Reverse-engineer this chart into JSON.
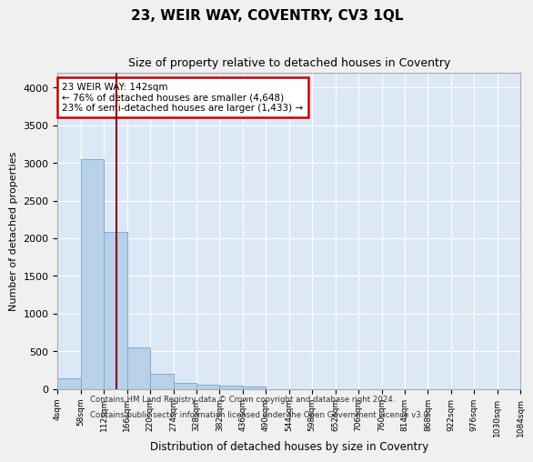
{
  "title": "23, WEIR WAY, COVENTRY, CV3 1QL",
  "subtitle": "Size of property relative to detached houses in Coventry",
  "xlabel": "Distribution of detached houses by size in Coventry",
  "ylabel": "Number of detached properties",
  "bar_color": "#b8d0e8",
  "bar_edge_color": "#7aafd4",
  "bg_color": "#dce8f5",
  "fig_bg_color": "#f0f0f0",
  "grid_color": "#ffffff",
  "vline_color": "#8b0000",
  "vline_x": 142,
  "bin_edges": [
    4,
    58,
    112,
    166,
    220,
    274,
    328,
    382,
    436,
    490,
    544,
    598,
    652,
    706,
    760,
    814,
    868,
    922,
    976,
    1030,
    1084
  ],
  "bar_heights": [
    140,
    3050,
    2080,
    550,
    200,
    80,
    60,
    45,
    35,
    0,
    0,
    0,
    0,
    0,
    0,
    0,
    0,
    0,
    0,
    0
  ],
  "annotation_line1": "23 WEIR WAY: 142sqm",
  "annotation_line2": "← 76% of detached houses are smaller (4,648)",
  "annotation_line3": "23% of semi-detached houses are larger (1,433) →",
  "annotation_box_color": "#cc0000",
  "ylim": [
    0,
    4200
  ],
  "yticks": [
    0,
    500,
    1000,
    1500,
    2000,
    2500,
    3000,
    3500,
    4000
  ],
  "footer_line1": "Contains HM Land Registry data © Crown copyright and database right 2024.",
  "footer_line2": "Contains public sector information licensed under the Open Government Licence v3.0."
}
